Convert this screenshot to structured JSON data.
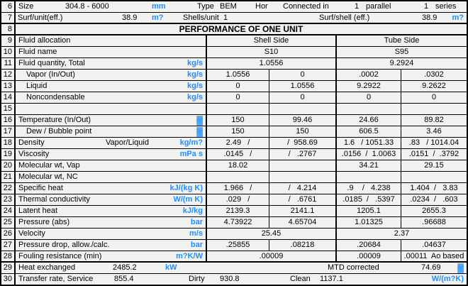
{
  "colors": {
    "unit_blue": "#1e8fff",
    "background": "#f1f1f0",
    "grid": "#000000"
  },
  "rows": {
    "r6": {
      "num": "6",
      "size_label": "Size",
      "size_value": "304.8 - 6000",
      "size_unit": "mm",
      "type_label": "Type",
      "type_value": "BEM",
      "orientation": "Hor",
      "connected_label": "Connected in",
      "parallel_value": "1",
      "parallel_label": "parallel",
      "series_value": "1",
      "series_label": "series"
    },
    "r7": {
      "num": "7",
      "surf_unit_label": "Surf/unit(eff.)",
      "surf_unit_value": "38.9",
      "surf_unit_unit": "m?",
      "shells_label": "Shells/unit",
      "shells_value": "1",
      "surf_shell_label": "Surf/shell (eff.)",
      "surf_shell_value": "38.9",
      "surf_shell_unit": "m?"
    },
    "r8": {
      "num": "8",
      "title": "PERFORMANCE OF ONE UNIT"
    },
    "r29": {
      "num": "29",
      "label": "Heat exchanged",
      "value": "2485.2",
      "unit": "kW",
      "mtd_label": "MTD corrected",
      "mtd_value": "74.69",
      "mtd_unit": "▓"
    },
    "r30": {
      "num": "30",
      "label": "Transfer rate, Service",
      "service_value": "855.4",
      "dirty_label": "Dirty",
      "dirty_value": "930.8",
      "clean_label": "Clean",
      "clean_value": "1137.1",
      "unit": "W/(m?K)"
    }
  },
  "body_rows": [
    {
      "num": "9",
      "label": "Fluid allocation",
      "cells": [
        {
          "span": "shell",
          "text": "Shell Side"
        },
        {
          "span": "tube",
          "text": "Tube Side"
        }
      ]
    },
    {
      "num": "10",
      "label": "Fluid name",
      "cells": [
        {
          "span": "shell",
          "text": "S10"
        },
        {
          "span": "tube",
          "text": "S95"
        }
      ]
    },
    {
      "num": "11",
      "label": "Fluid quantity, Total",
      "unit": "kg/s",
      "cells": [
        {
          "span": "shell",
          "text": "1.0556"
        },
        {
          "span": "tube",
          "text": "9.2924"
        }
      ]
    },
    {
      "num": "12",
      "label": "Vapor (In/Out)",
      "indent": true,
      "unit": "kg/s",
      "cells": [
        {
          "span": "sa",
          "text": "1.0556"
        },
        {
          "span": "sb",
          "text": "0"
        },
        {
          "span": "ta",
          "text": ".0002"
        },
        {
          "span": "tb",
          "text": ".0302"
        }
      ]
    },
    {
      "num": "13",
      "label": "Liquid",
      "indent": true,
      "unit": "kg/s",
      "cells": [
        {
          "span": "sa",
          "text": "0"
        },
        {
          "span": "sb",
          "text": "1.0556"
        },
        {
          "span": "ta",
          "text": "9.2922"
        },
        {
          "span": "tb",
          "text": "9.2622"
        }
      ]
    },
    {
      "num": "14",
      "label": "Noncondensable",
      "indent": true,
      "unit": "kg/s",
      "cells": [
        {
          "span": "sa",
          "text": "0"
        },
        {
          "span": "sb",
          "text": "0"
        },
        {
          "span": "ta",
          "text": "0"
        },
        {
          "span": "tb",
          "text": "0"
        }
      ]
    },
    {
      "num": "15",
      "label": "",
      "cells": [
        {
          "span": "sa",
          "text": ""
        },
        {
          "span": "sb",
          "text": ""
        },
        {
          "span": "ta",
          "text": ""
        },
        {
          "span": "tb",
          "text": ""
        }
      ]
    },
    {
      "num": "16",
      "label": "Temperature (In/Out)",
      "unit": "▓",
      "unit_blob": true,
      "cells": [
        {
          "span": "sa",
          "text": "150"
        },
        {
          "span": "sb",
          "text": "99.46"
        },
        {
          "span": "ta",
          "text": "24.66"
        },
        {
          "span": "tb",
          "text": "89.82"
        }
      ]
    },
    {
      "num": "17",
      "label": "Dew / Bubble point",
      "indent": true,
      "unit": "▓",
      "unit_blob": true,
      "cells": [
        {
          "span": "sa",
          "text": "150"
        },
        {
          "span": "sb",
          "text": "150"
        },
        {
          "span": "ta",
          "text": "606.5"
        },
        {
          "span": "tb",
          "text": "3.46"
        }
      ]
    },
    {
      "num": "18",
      "label": "Density",
      "mid": "Vapor/Liquid",
      "unit": "kg/m?",
      "cells": [
        {
          "span": "sa",
          "text": "2.49   /"
        },
        {
          "span": "sb",
          "text": "/  958.69"
        },
        {
          "span": "ta",
          "text": "1.6   / 1051.33"
        },
        {
          "span": "tb",
          "text": ".83   / 1014.04"
        }
      ]
    },
    {
      "num": "19",
      "label": "Viscosity",
      "unit": "mPa s",
      "cells": [
        {
          "span": "sa",
          "text": ".0145   /"
        },
        {
          "span": "sb",
          "text": "/   .2767"
        },
        {
          "span": "ta",
          "text": ".0156  /  1.0063"
        },
        {
          "span": "tb",
          "text": ".0151  /  .3792"
        }
      ]
    },
    {
      "num": "20",
      "label": "Molecular wt, Vap",
      "cells": [
        {
          "span": "sa",
          "text": "18.02"
        },
        {
          "span": "sb",
          "text": ""
        },
        {
          "span": "ta",
          "text": "34.21"
        },
        {
          "span": "tb",
          "text": "29.15"
        }
      ]
    },
    {
      "num": "21",
      "label": "Molecular wt, NC",
      "cells": [
        {
          "span": "sa",
          "text": ""
        },
        {
          "span": "sb",
          "text": ""
        },
        {
          "span": "ta",
          "text": ""
        },
        {
          "span": "tb",
          "text": ""
        }
      ]
    },
    {
      "num": "22",
      "label": "Specific heat",
      "unit": "kJ/(kg K)",
      "cells": [
        {
          "span": "sa",
          "text": "1.966   /"
        },
        {
          "span": "sb",
          "text": "/   4.214"
        },
        {
          "span": "ta",
          "text": ".9    /   4.238"
        },
        {
          "span": "tb",
          "text": "1.404  /   3.83"
        }
      ]
    },
    {
      "num": "23",
      "label": "Thermal conductivity",
      "unit": "W/(m K)",
      "cells": [
        {
          "span": "sa",
          "text": ".029   /"
        },
        {
          "span": "sb",
          "text": "/   .6761"
        },
        {
          "span": "ta",
          "text": ".0185  /   .5397"
        },
        {
          "span": "tb",
          "text": ".0234  /   .603"
        }
      ]
    },
    {
      "num": "24",
      "label": "Latent heat",
      "unit": "kJ/kg",
      "cells": [
        {
          "span": "sa",
          "text": "2139.3"
        },
        {
          "span": "sb",
          "text": "2141.1"
        },
        {
          "span": "ta",
          "text": "1205.1"
        },
        {
          "span": "tb",
          "text": "2655.3"
        }
      ]
    },
    {
      "num": "25",
      "label": "Pressure (abs)",
      "unit": "bar",
      "cells": [
        {
          "span": "sa",
          "text": "4.73922"
        },
        {
          "span": "sb",
          "text": "4.65704"
        },
        {
          "span": "ta",
          "text": "1.01325"
        },
        {
          "span": "tb",
          "text": ".96688"
        }
      ]
    },
    {
      "num": "26",
      "label": "Velocity",
      "unit": "m/s",
      "cells": [
        {
          "span": "shell",
          "text": "25.45"
        },
        {
          "span": "tube",
          "text": "2.37"
        }
      ]
    },
    {
      "num": "27",
      "label": "Pressure drop, allow./calc.",
      "unit": "bar",
      "cells": [
        {
          "span": "sa",
          "text": ".25855"
        },
        {
          "span": "sb",
          "text": ".08218"
        },
        {
          "span": "ta",
          "text": ".20684"
        },
        {
          "span": "tb",
          "text": ".04637"
        }
      ]
    },
    {
      "num": "28",
      "label": "Fouling resistance (min)",
      "unit": "m?K/W",
      "thick_bottom": true,
      "cells": [
        {
          "span": "shell",
          "text": ".00009"
        },
        {
          "span": "ta",
          "text": ".00009"
        },
        {
          "span": "tb",
          "text": ".00011  Ao based"
        }
      ]
    }
  ]
}
